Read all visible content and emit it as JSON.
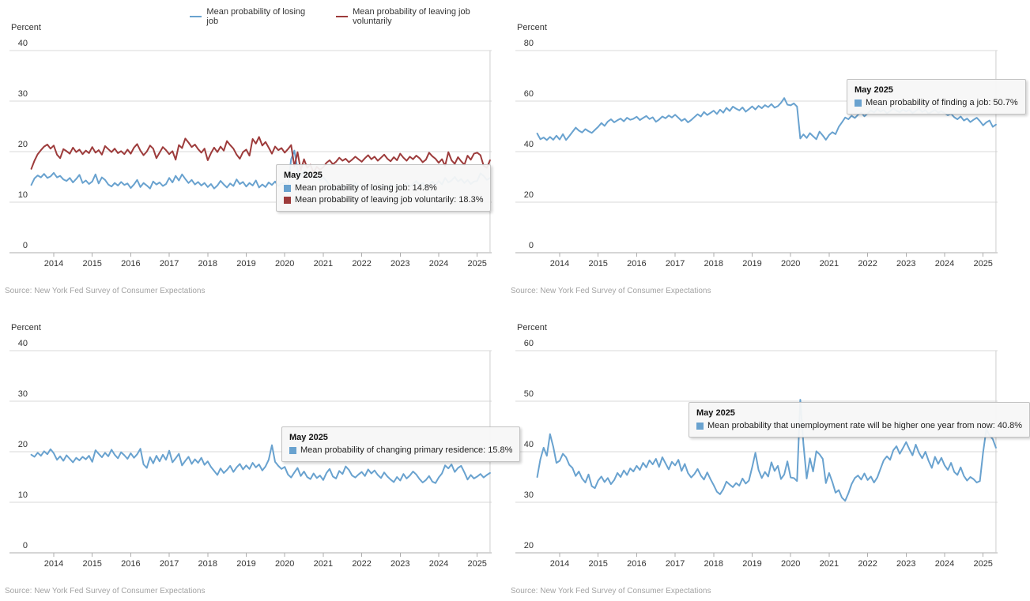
{
  "legend": {
    "items": [
      {
        "label": "Mean probability of losing job",
        "color": "#69a2cf"
      },
      {
        "label": "Mean probability of leaving job voluntarily",
        "color": "#9d3b3b"
      }
    ]
  },
  "chart_data": [
    {
      "type": "line",
      "percent_label": "Percent",
      "ylim": [
        0,
        40
      ],
      "yticks": [
        40,
        30,
        20,
        10,
        0
      ],
      "x_years": [
        2014,
        2015,
        2016,
        2017,
        2018,
        2019,
        2020,
        2021,
        2022,
        2023,
        2024,
        2025
      ],
      "x_start_year": 2013,
      "x_start_month_index": 5,
      "x_range": "Jun 2013 - May 2025, monthly",
      "grid": true,
      "source": "Source: New York Fed Survey of Consumer Expectations",
      "tooltip": {
        "title": "May 2025",
        "left": 349,
        "top": 208,
        "rows": [
          {
            "color": "#69a2cf",
            "text": "Mean probability of losing job: 14.8%"
          },
          {
            "color": "#9d3b3b",
            "text": "Mean probability of leaving job voluntarily: 18.3%"
          }
        ]
      },
      "series": [
        {
          "name": "Mean probability of losing job",
          "color": "#69a2cf",
          "values": [
            13.4,
            14.7,
            15.3,
            14.9,
            15.6,
            14.8,
            15.1,
            15.8,
            14.9,
            15.2,
            14.5,
            14.2,
            14.8,
            13.9,
            14.6,
            15.4,
            13.8,
            14.3,
            13.6,
            14.1,
            15.5,
            13.7,
            14.9,
            14.4,
            13.5,
            13.1,
            13.8,
            13.3,
            14.0,
            13.4,
            13.7,
            12.8,
            13.5,
            14.4,
            13.0,
            13.8,
            13.3,
            12.7,
            14.1,
            13.5,
            13.9,
            13.2,
            13.6,
            14.8,
            13.9,
            15.2,
            14.3,
            15.5,
            14.6,
            13.8,
            14.4,
            13.5,
            14.0,
            13.3,
            13.8,
            13.0,
            13.6,
            12.7,
            13.3,
            14.2,
            13.5,
            12.9,
            13.7,
            13.2,
            14.5,
            13.6,
            14.0,
            13.1,
            13.8,
            13.3,
            14.3,
            12.9,
            13.5,
            13.0,
            13.9,
            13.4,
            14.1,
            13.2,
            13.7,
            13.8,
            13.2,
            18.5,
            20.2,
            16.4,
            15.1,
            16.2,
            14.9,
            15.8,
            14.6,
            15.2,
            14.4,
            14.9,
            14.2,
            13.4,
            12.6,
            12.9,
            13.6,
            12.8,
            13.3,
            12.5,
            13.1,
            13.9,
            13.0,
            13.5,
            12.8,
            13.4,
            12.6,
            13.1,
            13.8,
            12.9,
            13.3,
            12.7,
            13.6,
            13.0,
            13.4,
            12.6,
            13.2,
            13.9,
            13.1,
            13.6,
            14.2,
            13.4,
            13.8,
            13.0,
            13.5,
            14.1,
            13.3,
            14.2,
            13.5,
            14.8,
            13.9,
            14.3,
            15.0,
            14.1,
            14.6,
            13.8,
            14.4,
            13.6,
            14.1,
            14.2,
            15.7,
            15.2,
            14.4,
            14.8
          ]
        },
        {
          "name": "Mean probability of leaving job voluntarily",
          "color": "#9d3b3b",
          "values": [
            16.6,
            18.2,
            19.5,
            20.3,
            21.0,
            21.4,
            20.6,
            21.2,
            19.4,
            18.7,
            20.5,
            20.1,
            19.6,
            20.8,
            19.9,
            20.4,
            19.5,
            20.2,
            19.7,
            20.9,
            19.8,
            20.3,
            19.4,
            21.1,
            20.5,
            19.9,
            20.6,
            19.7,
            20.1,
            19.5,
            20.4,
            19.6,
            20.8,
            21.5,
            20.2,
            19.3,
            20.0,
            21.2,
            20.6,
            18.7,
            19.8,
            20.9,
            20.3,
            19.5,
            20.1,
            18.4,
            21.3,
            20.7,
            22.6,
            21.8,
            20.9,
            21.4,
            20.5,
            19.8,
            20.6,
            18.3,
            19.7,
            20.8,
            19.9,
            21.0,
            20.2,
            22.1,
            21.3,
            20.6,
            19.4,
            18.6,
            19.9,
            20.4,
            19.2,
            22.5,
            21.6,
            22.9,
            21.2,
            21.9,
            20.8,
            19.6,
            21.0,
            20.3,
            20.7,
            19.8,
            20.5,
            21.3,
            17.1,
            19.9,
            16.3,
            18.5,
            16.8,
            17.4,
            15.9,
            17.0,
            16.4,
            16.9,
            17.8,
            18.3,
            17.5,
            18.0,
            18.8,
            18.2,
            18.6,
            17.9,
            18.4,
            19.0,
            18.5,
            18.0,
            18.7,
            19.3,
            18.5,
            19.0,
            18.2,
            18.8,
            19.4,
            18.6,
            18.1,
            18.9,
            18.3,
            19.6,
            18.8,
            18.2,
            19.0,
            18.5,
            19.2,
            18.7,
            17.9,
            18.4,
            19.8,
            19.1,
            18.6,
            17.8,
            18.5,
            17.2,
            19.9,
            18.3,
            17.6,
            18.9,
            18.1,
            17.4,
            19.2,
            18.4,
            19.6,
            19.8,
            19.3,
            17.2,
            16.8,
            18.3
          ]
        }
      ]
    },
    {
      "type": "line",
      "percent_label": "Percent",
      "ylim": [
        0,
        80
      ],
      "yticks": [
        80,
        60,
        40,
        20,
        0
      ],
      "x_years": [
        2014,
        2015,
        2016,
        2017,
        2018,
        2019,
        2020,
        2021,
        2022,
        2023,
        2024,
        2025
      ],
      "x_start_year": 2013,
      "x_start_month_index": 5,
      "x_range": "Jun 2013 - May 2025, monthly",
      "grid": true,
      "source": "Source: New York Fed Survey of Consumer Expectations",
      "tooltip": {
        "title": "May 2025",
        "left": 431,
        "top": 100,
        "rows": [
          {
            "color": "#69a2cf",
            "text": "Mean probability of finding a job: 50.7%"
          }
        ]
      },
      "series": [
        {
          "name": "Mean probability of finding a job",
          "color": "#69a2cf",
          "values": [
            47.2,
            44.9,
            45.6,
            44.6,
            45.8,
            44.7,
            46.3,
            44.8,
            46.9,
            44.6,
            46.2,
            47.8,
            49.5,
            48.3,
            47.6,
            48.9,
            48.1,
            47.4,
            48.6,
            49.8,
            51.3,
            50.2,
            51.9,
            52.8,
            51.6,
            52.4,
            53.1,
            52.0,
            53.4,
            52.6,
            53.0,
            53.8,
            52.5,
            53.3,
            54.1,
            52.9,
            53.6,
            51.8,
            52.7,
            53.9,
            53.2,
            54.3,
            53.5,
            54.6,
            53.4,
            52.2,
            53.0,
            51.6,
            52.5,
            53.7,
            54.8,
            53.9,
            55.7,
            54.5,
            55.3,
            56.2,
            54.9,
            56.6,
            55.4,
            57.3,
            56.1,
            57.8,
            57.0,
            56.3,
            57.5,
            55.8,
            56.8,
            57.9,
            56.7,
            58.1,
            57.2,
            58.4,
            57.6,
            58.8,
            57.4,
            58.0,
            59.3,
            61.2,
            58.6,
            58.3,
            59.1,
            57.8,
            45.2,
            46.8,
            45.4,
            47.3,
            46.1,
            44.9,
            47.9,
            46.4,
            44.7,
            46.6,
            47.7,
            46.9,
            49.8,
            51.6,
            53.5,
            52.8,
            54.2,
            53.3,
            54.6,
            55.4,
            54.0,
            55.1,
            56.3,
            55.5,
            56.9,
            55.8,
            56.5,
            55.2,
            56.0,
            57.1,
            56.2,
            55.6,
            56.7,
            55.9,
            56.6,
            55.3,
            56.1,
            57.0,
            55.7,
            56.4,
            55.0,
            55.8,
            56.5,
            55.4,
            56.0,
            55.2,
            54.4,
            55.0,
            53.6,
            52.8,
            53.9,
            52.3,
            53.1,
            51.7,
            52.6,
            53.4,
            52.1,
            50.4,
            51.6,
            52.3,
            49.8,
            50.7
          ]
        }
      ]
    },
    {
      "type": "line",
      "percent_label": "Percent",
      "ylim": [
        0,
        40
      ],
      "yticks": [
        40,
        30,
        20,
        10,
        0
      ],
      "x_years": [
        2014,
        2015,
        2016,
        2017,
        2018,
        2019,
        2020,
        2021,
        2022,
        2023,
        2024,
        2025
      ],
      "x_start_year": 2013,
      "x_start_month_index": 5,
      "x_range": "Jun 2013 - May 2025, monthly",
      "grid": true,
      "source": "Source: New York Fed Survey of Consumer Expectations",
      "tooltip": {
        "title": "May 2025",
        "left": 356,
        "top": 160,
        "rows": [
          {
            "color": "#69a2cf",
            "text": "Mean probability of changing primary residence: 15.8%"
          }
        ]
      },
      "series": [
        {
          "name": "Mean probability of changing primary residence",
          "color": "#69a2cf",
          "values": [
            19.4,
            19.0,
            19.8,
            19.2,
            20.1,
            19.5,
            20.5,
            19.7,
            18.4,
            19.1,
            18.2,
            19.3,
            18.6,
            17.9,
            18.8,
            18.3,
            19.0,
            18.5,
            19.2,
            18.0,
            20.3,
            19.6,
            18.9,
            19.8,
            19.1,
            20.4,
            19.4,
            18.7,
            19.9,
            19.3,
            18.6,
            19.7,
            18.8,
            19.5,
            20.6,
            17.5,
            16.8,
            18.9,
            17.7,
            19.2,
            18.1,
            19.4,
            18.4,
            20.2,
            17.9,
            18.7,
            19.6,
            17.3,
            18.2,
            19.0,
            17.6,
            18.5,
            17.8,
            18.8,
            17.4,
            18.1,
            17.0,
            16.2,
            15.4,
            16.7,
            15.8,
            16.4,
            17.2,
            16.0,
            16.9,
            17.6,
            16.5,
            17.3,
            16.6,
            17.8,
            16.9,
            17.5,
            16.3,
            17.1,
            18.4,
            21.3,
            18.0,
            17.2,
            16.6,
            17.0,
            15.5,
            14.9,
            15.9,
            16.8,
            15.2,
            16.1,
            15.0,
            14.6,
            15.7,
            14.8,
            15.3,
            14.4,
            15.8,
            16.6,
            15.1,
            14.7,
            16.2,
            15.6,
            17.1,
            16.4,
            15.3,
            14.9,
            15.5,
            16.0,
            15.2,
            16.5,
            15.7,
            16.3,
            15.4,
            14.8,
            15.9,
            15.1,
            14.5,
            14.0,
            15.0,
            14.3,
            15.6,
            14.7,
            15.3,
            16.1,
            15.5,
            14.6,
            13.9,
            14.4,
            15.2,
            14.1,
            13.8,
            14.9,
            15.7,
            17.3,
            16.7,
            17.5,
            16.0,
            16.8,
            17.2,
            15.9,
            14.5,
            15.4,
            14.7,
            15.1,
            15.6,
            14.9,
            15.4,
            15.8
          ]
        }
      ]
    },
    {
      "type": "line",
      "percent_label": "Percent",
      "ylim": [
        20,
        60
      ],
      "yticks": [
        60,
        50,
        40,
        30,
        20
      ],
      "x_years": [
        2014,
        2015,
        2016,
        2017,
        2018,
        2019,
        2020,
        2021,
        2022,
        2023,
        2024,
        2025
      ],
      "x_start_year": 2013,
      "x_start_month_index": 5,
      "x_range": "Jun 2013 - May 2025, monthly",
      "grid": true,
      "source": "Source: New York Fed Survey of Consumer Expectations",
      "tooltip": {
        "title": "May 2025",
        "left": 231,
        "top": 129,
        "rows": [
          {
            "color": "#69a2cf",
            "text": "Mean probability that unemployment rate will be higher one year from now: 40.8%"
          }
        ]
      },
      "series": [
        {
          "name": "Mean probability that unemployment rate will be higher one year from now",
          "color": "#69a2cf",
          "values": [
            35.0,
            38.5,
            40.8,
            39.2,
            43.5,
            41.0,
            37.8,
            38.2,
            39.6,
            38.9,
            37.4,
            36.8,
            35.2,
            36.1,
            34.7,
            33.9,
            35.5,
            33.2,
            32.8,
            34.3,
            35.1,
            34.0,
            34.8,
            33.6,
            34.4,
            35.8,
            35.0,
            36.3,
            35.4,
            36.7,
            36.1,
            37.2,
            36.4,
            37.8,
            36.9,
            38.3,
            37.5,
            38.6,
            37.0,
            38.9,
            37.7,
            36.5,
            38.0,
            37.3,
            38.4,
            36.2,
            37.6,
            35.8,
            34.9,
            35.6,
            36.6,
            35.3,
            34.5,
            35.9,
            34.6,
            33.4,
            32.1,
            31.6,
            32.6,
            34.1,
            33.5,
            33.0,
            33.8,
            33.3,
            34.7,
            33.7,
            34.3,
            36.9,
            39.8,
            36.4,
            34.8,
            36.0,
            35.1,
            37.9,
            36.2,
            37.2,
            34.6,
            35.5,
            38.1,
            34.9,
            34.8,
            34.2,
            50.3,
            41.5,
            34.7,
            38.7,
            36.1,
            40.1,
            39.5,
            38.6,
            33.8,
            35.8,
            34.0,
            31.9,
            32.4,
            30.9,
            30.3,
            31.8,
            33.6,
            34.8,
            35.3,
            34.5,
            35.7,
            34.4,
            35.1,
            33.9,
            34.9,
            36.6,
            38.3,
            39.1,
            38.4,
            40.3,
            41.1,
            39.6,
            40.7,
            41.9,
            40.5,
            39.3,
            41.4,
            39.8,
            38.7,
            40.0,
            38.2,
            36.8,
            39.0,
            37.6,
            38.8,
            37.3,
            36.4,
            37.8,
            36.0,
            35.4,
            36.9,
            35.2,
            34.3,
            35.0,
            34.6,
            33.9,
            34.2,
            39.9,
            44.5,
            43.2,
            42.5,
            40.8
          ]
        }
      ]
    }
  ],
  "style": {
    "gridline_color": "#d9d9d9",
    "axis_color": "#adadad",
    "crosshair_color": "#cfcfcf",
    "tick_label_color": "#333333",
    "source_color": "#a3a3a3"
  }
}
